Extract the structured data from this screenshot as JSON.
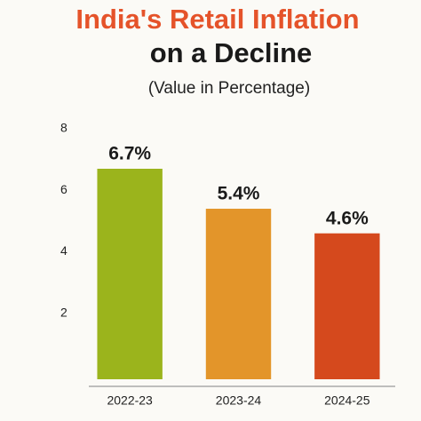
{
  "chart_data": {
    "type": "bar",
    "title": "India's Retail Inflation",
    "title_line2": "on a Decline",
    "subtitle": "(Value in Percentage)",
    "categories": [
      "2022-23",
      "2023-24",
      "2024-25"
    ],
    "values": [
      6.7,
      5.4,
      4.6
    ],
    "value_labels": [
      "6.7%",
      "5.4%",
      "4.6%"
    ],
    "colors": [
      "#9bb41c",
      "#e3952a",
      "#d5491d"
    ],
    "ylim": [
      0,
      8
    ],
    "yticks": [
      2,
      4,
      6,
      8
    ],
    "grid": false
  }
}
